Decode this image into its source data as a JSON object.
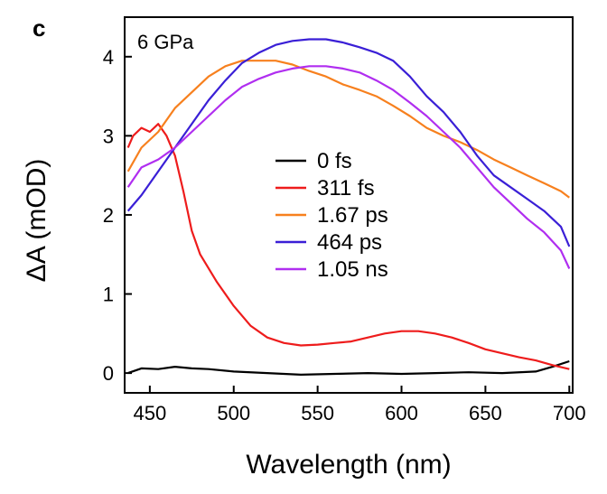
{
  "chart_data": {
    "type": "line",
    "panel_label": "c",
    "annotation": "6 GPa",
    "xlabel": "Wavelength (nm)",
    "ylabel": "ΔA (mOD)",
    "xlim": [
      435,
      702
    ],
    "ylim": [
      -0.25,
      4.5
    ],
    "xticks": [
      450,
      500,
      550,
      600,
      650,
      700
    ],
    "yticks": [
      0,
      1,
      2,
      3,
      4
    ],
    "grid": false,
    "legend_position": "center",
    "series": [
      {
        "name": "0 fs",
        "color": "#000000",
        "x": [
          437,
          445,
          455,
          465,
          475,
          485,
          500,
          520,
          540,
          560,
          580,
          600,
          620,
          640,
          660,
          680,
          690,
          700
        ],
        "y": [
          0.0,
          0.06,
          0.05,
          0.08,
          0.06,
          0.05,
          0.02,
          0.0,
          -0.02,
          -0.01,
          0.0,
          -0.01,
          0.0,
          0.01,
          0.0,
          0.02,
          0.08,
          0.15
        ]
      },
      {
        "name": "311 fs",
        "color": "#ee1c1c",
        "x": [
          437,
          440,
          445,
          450,
          455,
          460,
          465,
          470,
          475,
          480,
          490,
          500,
          510,
          520,
          530,
          540,
          550,
          560,
          570,
          580,
          590,
          600,
          610,
          620,
          630,
          640,
          650,
          660,
          670,
          680,
          690,
          700
        ],
        "y": [
          2.85,
          3.0,
          3.1,
          3.05,
          3.15,
          3.0,
          2.75,
          2.3,
          1.8,
          1.5,
          1.15,
          0.85,
          0.6,
          0.45,
          0.38,
          0.35,
          0.36,
          0.38,
          0.4,
          0.45,
          0.5,
          0.53,
          0.53,
          0.5,
          0.45,
          0.38,
          0.3,
          0.25,
          0.2,
          0.16,
          0.1,
          0.05
        ]
      },
      {
        "name": "1.67 ps",
        "color": "#f7801e",
        "x": [
          437,
          445,
          455,
          465,
          475,
          485,
          495,
          505,
          515,
          525,
          535,
          545,
          555,
          565,
          575,
          585,
          595,
          605,
          615,
          625,
          635,
          645,
          655,
          665,
          675,
          685,
          695,
          700
        ],
        "y": [
          2.55,
          2.85,
          3.05,
          3.35,
          3.55,
          3.75,
          3.88,
          3.95,
          3.95,
          3.95,
          3.9,
          3.82,
          3.75,
          3.65,
          3.58,
          3.5,
          3.38,
          3.25,
          3.1,
          3.0,
          2.92,
          2.82,
          2.7,
          2.6,
          2.5,
          2.4,
          2.3,
          2.22
        ]
      },
      {
        "name": "464 ps",
        "color": "#3a1fd6",
        "x": [
          437,
          445,
          455,
          465,
          475,
          485,
          495,
          505,
          515,
          525,
          535,
          545,
          555,
          565,
          575,
          585,
          595,
          605,
          615,
          625,
          635,
          645,
          655,
          665,
          675,
          685,
          695,
          700
        ],
        "y": [
          2.05,
          2.25,
          2.55,
          2.85,
          3.15,
          3.45,
          3.7,
          3.92,
          4.05,
          4.15,
          4.2,
          4.22,
          4.22,
          4.18,
          4.12,
          4.05,
          3.95,
          3.75,
          3.5,
          3.3,
          3.05,
          2.75,
          2.5,
          2.35,
          2.2,
          2.05,
          1.85,
          1.6
        ]
      },
      {
        "name": "1.05 ns",
        "color": "#b02ef0",
        "x": [
          437,
          445,
          455,
          465,
          475,
          485,
          495,
          505,
          515,
          525,
          535,
          545,
          555,
          565,
          575,
          585,
          595,
          605,
          615,
          625,
          635,
          645,
          655,
          665,
          675,
          685,
          695,
          700
        ],
        "y": [
          2.35,
          2.6,
          2.7,
          2.85,
          3.05,
          3.25,
          3.45,
          3.62,
          3.72,
          3.8,
          3.85,
          3.88,
          3.88,
          3.85,
          3.8,
          3.7,
          3.58,
          3.42,
          3.25,
          3.05,
          2.85,
          2.6,
          2.35,
          2.15,
          1.95,
          1.78,
          1.55,
          1.32
        ]
      }
    ]
  }
}
